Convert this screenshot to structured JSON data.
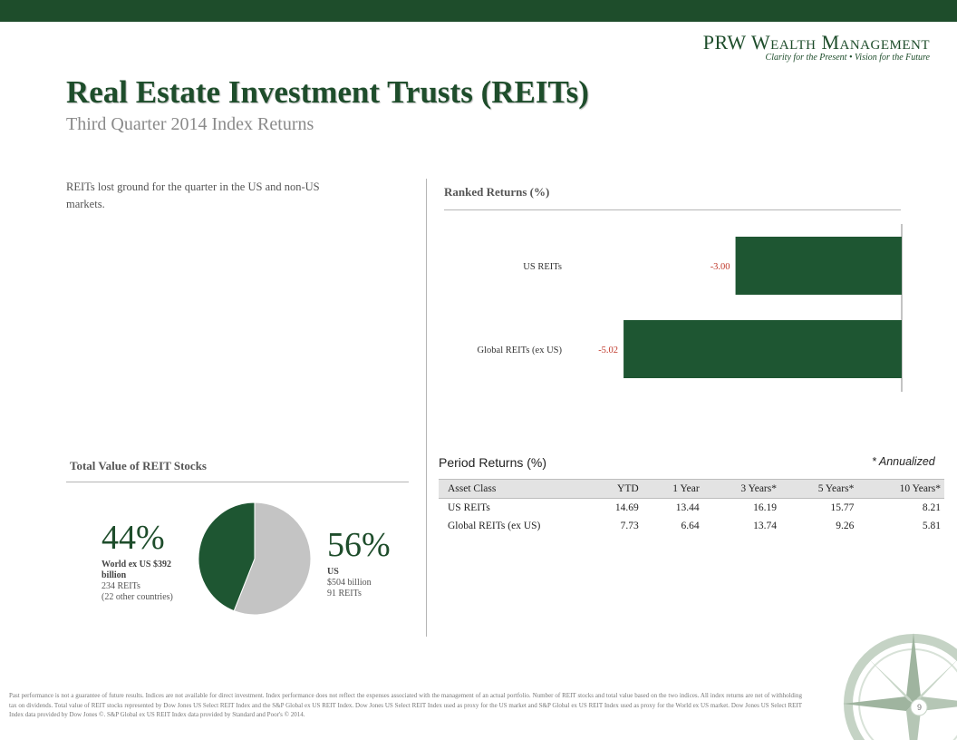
{
  "header": {
    "logo_name": "PRW Wealth Management",
    "logo_tagline": "Clarity for the Present  •  Vision for the Future",
    "title": "Real Estate Investment Trusts (REITs)",
    "subtitle": "Third Quarter 2014 Index Returns"
  },
  "intro": "REITs lost ground for the quarter in the US and non-US markets.",
  "ranked": {
    "title": "Ranked Returns (%)"
  },
  "chart_data": [
    {
      "type": "bar",
      "orientation": "horizontal",
      "title": "Ranked Returns (%)",
      "categories": [
        "US REITs",
        "Global REITs (ex US)"
      ],
      "values": [
        -3.0,
        -5.02
      ],
      "value_labels": [
        "-3.00",
        "-5.02"
      ],
      "bar_color": "#1e5632",
      "label_color": "#c0392b"
    },
    {
      "type": "pie",
      "title": "Total Value of REIT Stocks",
      "slices": [
        {
          "label": "US",
          "value": 56,
          "color": "#c4c4c4"
        },
        {
          "label": "World ex US",
          "value": 44,
          "color": "#1e5632"
        }
      ]
    }
  ],
  "total_value": {
    "title": "Total Value of REIT Stocks",
    "left_pct": "44%",
    "left_name": "World ex US $392 billion",
    "left_line2": "234 REITs",
    "left_line3": "(22 other countries)",
    "right_pct": "56%",
    "right_name": "US",
    "right_line2": "$504 billion",
    "right_line3": "91 REITs"
  },
  "period": {
    "title": "Period Returns (%)",
    "annualized": "* Annualized",
    "columns": [
      "Asset Class",
      "YTD",
      "1 Year",
      "3 Years*",
      "5 Years*",
      "10 Years*"
    ],
    "rows": [
      [
        "US REITs",
        "14.69",
        "13.44",
        "16.19",
        "15.77",
        "8.21"
      ],
      [
        "Global REITs (ex US)",
        "7.73",
        "6.64",
        "13.74",
        "9.26",
        "5.81"
      ]
    ]
  },
  "footer": "Past performance is not a guarantee of future results. Indices are not available for direct investment. Index performance does not reflect the expenses associated with the management of an actual portfolio. Number of REIT stocks and total value based on the two indices. All index returns are net of withholding tax on dividends. Total value of REIT stocks represented by Dow Jones US Select REIT Index and the S&P Global ex US REIT Index. Dow Jones US Select REIT Index used as proxy for the US market and S&P Global ex US REIT Index used as proxy for the World ex US market. Dow Jones US Select REIT Index data provided by Dow Jones ©. S&P Global ex US REIT Index data provided by Standard and Poor's © 2014.",
  "page_number": "9"
}
